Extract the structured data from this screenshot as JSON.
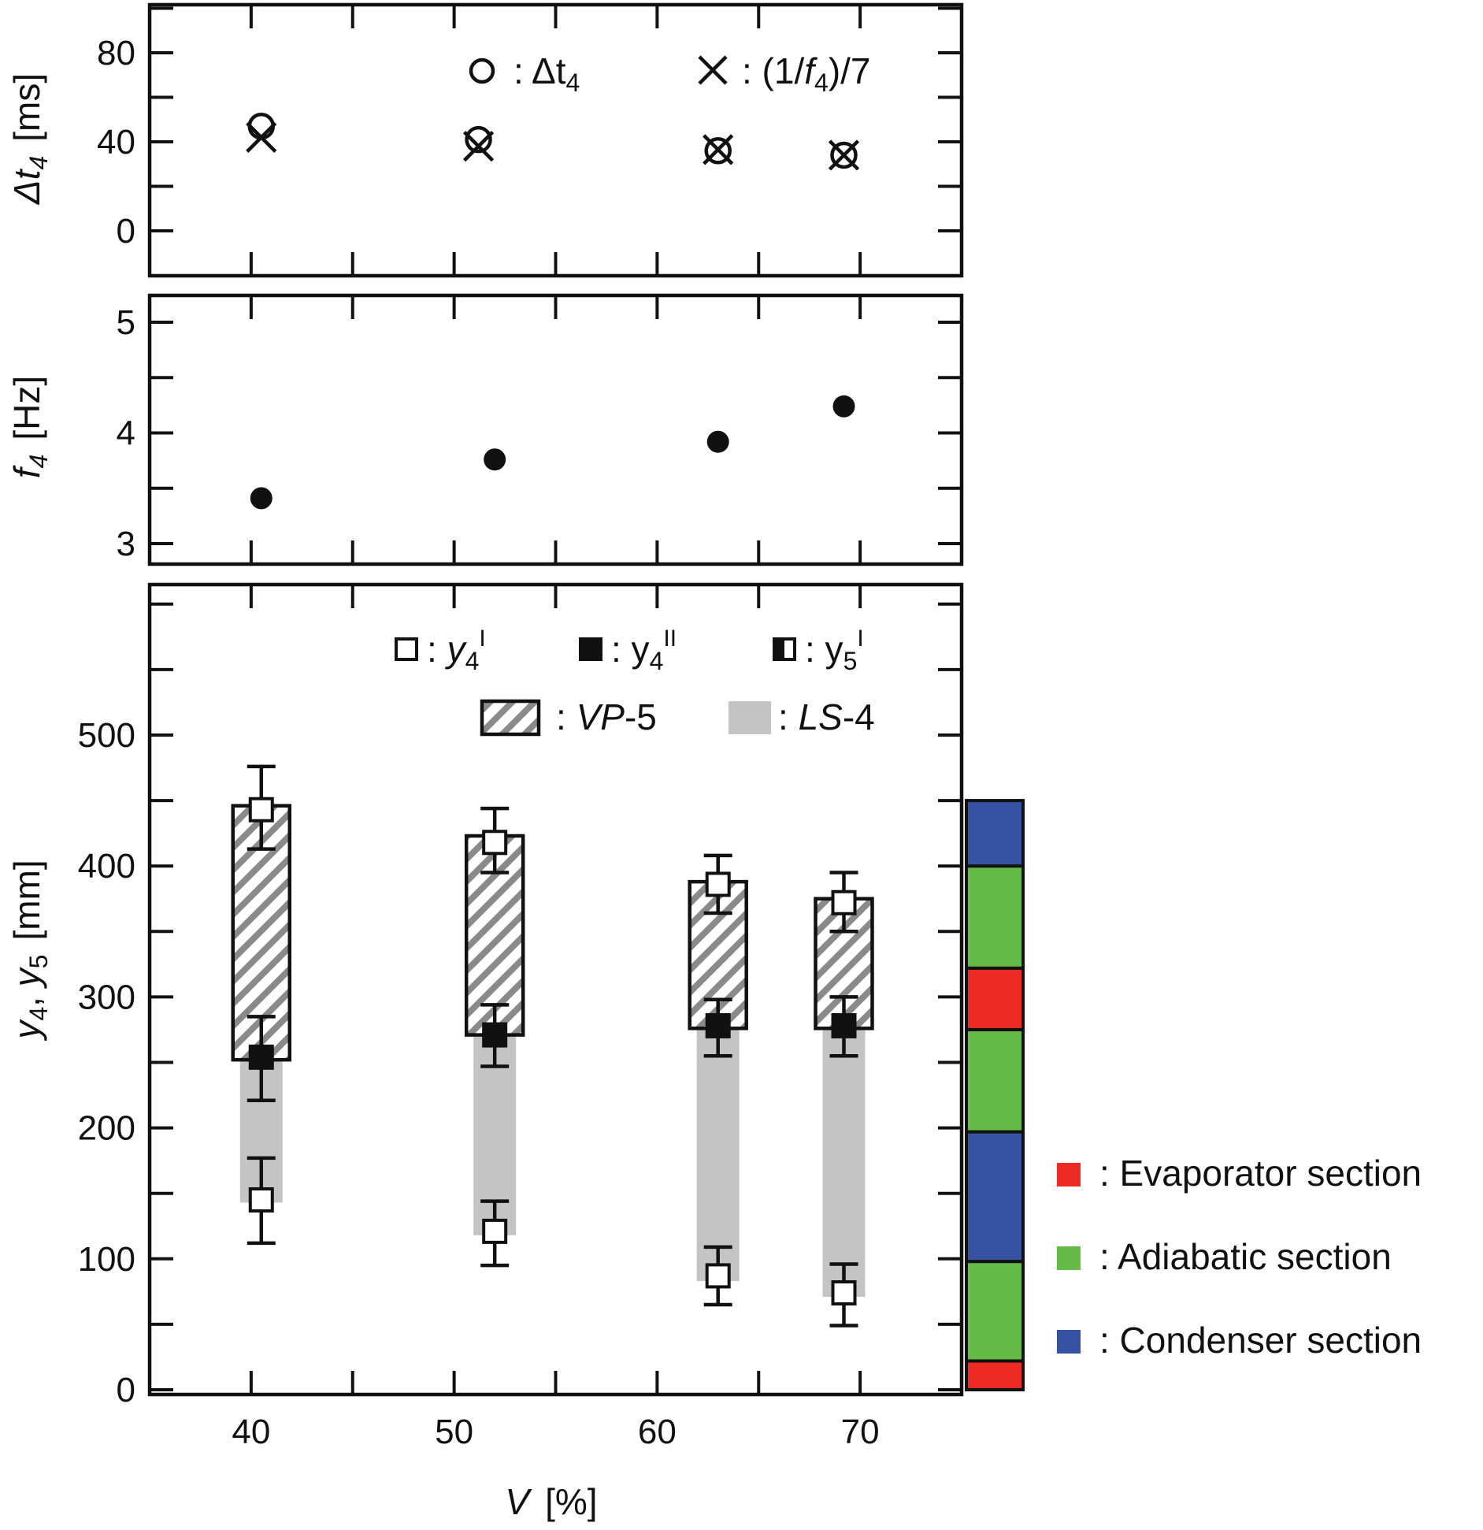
{
  "chart_data": [
    {
      "type": "scatter",
      "id": "top",
      "ylabel": {
        "main": "Δt",
        "sub": "4",
        "unit": "[ms]"
      },
      "ylim": [
        -20,
        100
      ],
      "xlim": [
        35,
        75
      ],
      "yticks": [
        0,
        40,
        80
      ],
      "ytick_labels": [
        "0",
        "40",
        "80"
      ],
      "series": [
        {
          "name": "Δt4",
          "marker": "open-circle",
          "x": [
            40.5,
            51.2,
            63.0,
            69.2
          ],
          "y": [
            47,
            41,
            36,
            34
          ]
        },
        {
          "name": "(1/f4)/7",
          "marker": "cross",
          "x": [
            40.5,
            51.2,
            63.0,
            69.2
          ],
          "y": [
            42,
            38,
            36.5,
            34
          ]
        }
      ],
      "legend": [
        {
          "marker": "open-circle",
          "label": ": Δt",
          "sub": "4"
        },
        {
          "marker": "cross",
          "label_pre": ": (1/",
          "label_f": "f",
          "sub": "4",
          "label_post": ")/7"
        }
      ]
    },
    {
      "type": "scatter",
      "id": "middle",
      "ylabel": {
        "main": "f",
        "sub": "4",
        "unit": "[Hz]"
      },
      "ylim": [
        2.8,
        5.2
      ],
      "xlim": [
        35,
        75
      ],
      "yticks": [
        3,
        4,
        5
      ],
      "ytick_labels": [
        "3",
        "4",
        "5"
      ],
      "series": [
        {
          "name": "f4",
          "marker": "filled-circle",
          "x": [
            40.5,
            52.0,
            63.0,
            69.2
          ],
          "y": [
            3.41,
            3.76,
            3.92,
            4.24
          ]
        }
      ]
    },
    {
      "type": "scatter",
      "id": "bottom",
      "xlabel": {
        "main": "V",
        "unit": "[%]"
      },
      "ylabel": {
        "a": "y",
        "a_sub": "4",
        "sep": ", ",
        "b": "y",
        "b_sub": "5",
        "unit": "[mm]"
      },
      "ylim": [
        0,
        600
      ],
      "xlim": [
        35,
        75
      ],
      "yticks": [
        0,
        100,
        200,
        300,
        400,
        500
      ],
      "ytick_labels": [
        "0",
        "100",
        "200",
        "300",
        "400",
        "500"
      ],
      "xticks": [
        40,
        50,
        60,
        70
      ],
      "xtick_labels": [
        "40",
        "50",
        "60",
        "70"
      ],
      "groups": [
        {
          "x": 40.5,
          "vp5": [
            252,
            446
          ],
          "ls4": [
            143,
            252
          ],
          "y4I_low": {
            "value": 145,
            "err": [
              112,
              177
            ]
          },
          "y4II": {
            "value": 254,
            "err": [
              221,
              285
            ]
          },
          "y4I_high": {
            "value": 443,
            "err": [
              413,
              476
            ]
          }
        },
        {
          "x": 52.0,
          "vp5": [
            271,
            423
          ],
          "ls4": [
            118,
            271
          ],
          "y4I_low": {
            "value": 121,
            "err": [
              95,
              144
            ]
          },
          "y4II": {
            "value": 271,
            "err": [
              247,
              294
            ]
          },
          "y4I_high": {
            "value": 418,
            "err": [
              395,
              444
            ]
          }
        },
        {
          "x": 63.0,
          "vp5": [
            276,
            388
          ],
          "ls4": [
            83,
            276
          ],
          "y4I_low": {
            "value": 87,
            "err": [
              65,
              109
            ]
          },
          "y4II": {
            "value": 278,
            "err": [
              255,
              298
            ]
          },
          "y4I_high": {
            "value": 386,
            "err": [
              364,
              408
            ]
          }
        },
        {
          "x": 69.2,
          "vp5": [
            276,
            375
          ],
          "ls4": [
            71,
            276
          ],
          "y4I_low": {
            "value": 74,
            "err": [
              49,
              96
            ]
          },
          "y4II": {
            "value": 278,
            "err": [
              255,
              300
            ]
          },
          "y4I_high": {
            "value": 372,
            "err": [
              350,
              395
            ]
          }
        }
      ],
      "legend_markers": [
        {
          "marker": "open-square",
          "label": ": ",
          "var": "y",
          "sub": "4",
          "sup": "I"
        },
        {
          "marker": "filled-square",
          "label": ": y",
          "sub": "4",
          "sup": "II"
        },
        {
          "marker": "half-square",
          "label": ": y",
          "sub": "5",
          "sup": "I"
        }
      ],
      "legend_areas": [
        {
          "swatch": "hatched",
          "label_pre": ": ",
          "label_it": "VP",
          "label_post": "-5"
        },
        {
          "swatch": "gray",
          "label_pre": ": ",
          "label_it": "LS",
          "label_post": "-4"
        }
      ]
    }
  ],
  "section_bar": {
    "segments_bottom_to_top": [
      {
        "section": "evaporator",
        "from": 0,
        "to": 22
      },
      {
        "section": "adiabatic",
        "from": 22,
        "to": 98
      },
      {
        "section": "condenser",
        "from": 98,
        "to": 197
      },
      {
        "section": "adiabatic",
        "from": 197,
        "to": 275
      },
      {
        "section": "evaporator",
        "from": 275,
        "to": 322
      },
      {
        "section": "adiabatic",
        "from": 322,
        "to": 400
      },
      {
        "section": "condenser",
        "from": 400,
        "to": 450
      }
    ]
  },
  "section_legend": [
    {
      "section": "evaporator",
      "label": ": Evaporator section"
    },
    {
      "section": "adiabatic",
      "label": ": Adiabatic section"
    },
    {
      "section": "condenser",
      "label": ": Condenser section"
    }
  ],
  "colors": {
    "evaporator": "#ee2a24",
    "adiabatic": "#65bb45",
    "condenser": "#3451a2",
    "ls_fill": "#c4c4c4",
    "hatch": "#8a8a8a",
    "ink": "#111111"
  }
}
